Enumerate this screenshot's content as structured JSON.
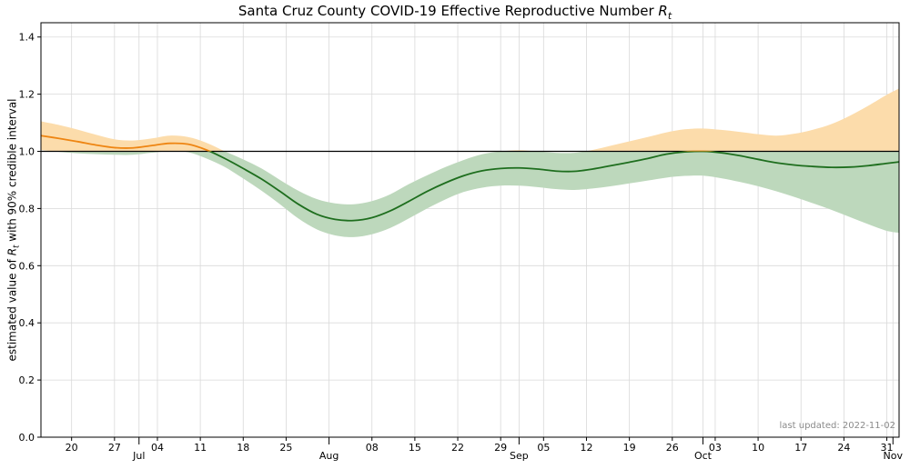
{
  "title": {
    "prefix": "Santa Cruz County COVID-19 Effective Reproductive Number ",
    "var": "R",
    "sub": "t"
  },
  "y_axis_label": {
    "prefix": "estimated value of ",
    "var": "R",
    "sub": "t",
    "suffix": " with 90% credible interval"
  },
  "footnote": "last updated: 2022-11-02",
  "chart_data": {
    "type": "line",
    "title": "Santa Cruz County COVID-19 Effective Reproductive Number Rt",
    "ylabel": "estimated value of Rt with 90% credible interval",
    "annotation": "last updated: 2022-11-02",
    "grid": true,
    "ylim": [
      0,
      1.45
    ],
    "y_ticks": [
      0,
      0.2,
      0.4,
      0.6,
      0.8,
      1,
      1.2,
      1.4
    ],
    "reference_line": 1.0,
    "xlim_days": [
      0,
      140
    ],
    "x_day_zero_date": "2022-06-15",
    "x_ticks_minor": [
      {
        "day": 5,
        "label": "20"
      },
      {
        "day": 12,
        "label": "27"
      },
      {
        "day": 19,
        "label": "04"
      },
      {
        "day": 26,
        "label": "11"
      },
      {
        "day": 33,
        "label": "18"
      },
      {
        "day": 40,
        "label": "25"
      },
      {
        "day": 54,
        "label": "08"
      },
      {
        "day": 61,
        "label": "15"
      },
      {
        "day": 68,
        "label": "22"
      },
      {
        "day": 75,
        "label": "29"
      },
      {
        "day": 82,
        "label": "05"
      },
      {
        "day": 89,
        "label": "12"
      },
      {
        "day": 96,
        "label": "19"
      },
      {
        "day": 103,
        "label": "26"
      },
      {
        "day": 110,
        "label": "03"
      },
      {
        "day": 117,
        "label": "10"
      },
      {
        "day": 124,
        "label": "17"
      },
      {
        "day": 131,
        "label": "24"
      },
      {
        "day": 138,
        "label": "31"
      }
    ],
    "x_ticks_major": [
      {
        "day": 16,
        "label": "Jul"
      },
      {
        "day": 47,
        "label": "Aug"
      },
      {
        "day": 78,
        "label": "Sep"
      },
      {
        "day": 108,
        "label": "Oct"
      },
      {
        "day": 139,
        "label": "Nov"
      }
    ],
    "colors": {
      "line_above_1": "#ee8512",
      "band_above_1": "#fcdcab",
      "line_below_1": "#1e6e1e",
      "band_below_1": "#bdd8bc",
      "reference_line": "#000000",
      "grid": "#d9d9d9",
      "annotation": "#8a8a8a"
    },
    "x_days": [
      0,
      3,
      6,
      9,
      12,
      15,
      18,
      21,
      24,
      27,
      30,
      33,
      36,
      39,
      42,
      45,
      48,
      51,
      54,
      57,
      60,
      63,
      66,
      69,
      72,
      75,
      78,
      81,
      84,
      87,
      90,
      93,
      96,
      99,
      102,
      105,
      108,
      111,
      114,
      117,
      120,
      123,
      126,
      129,
      132,
      135,
      138,
      140
    ],
    "series": [
      {
        "name": "Rt estimate (mean)",
        "values": [
          1.055,
          1.045,
          1.034,
          1.022,
          1.013,
          1.012,
          1.02,
          1.028,
          1.025,
          1.005,
          0.975,
          0.94,
          0.903,
          0.86,
          0.815,
          0.78,
          0.762,
          0.758,
          0.768,
          0.792,
          0.825,
          0.86,
          0.89,
          0.915,
          0.932,
          0.94,
          0.942,
          0.938,
          0.931,
          0.93,
          0.938,
          0.95,
          0.962,
          0.975,
          0.99,
          0.998,
          1.0,
          0.995,
          0.985,
          0.972,
          0.96,
          0.952,
          0.947,
          0.944,
          0.945,
          0.95,
          0.958,
          0.963
        ]
      },
      {
        "name": "90% credible interval lower",
        "values": [
          1.005,
          0.998,
          0.993,
          0.99,
          0.988,
          0.988,
          0.995,
          1.0,
          0.997,
          0.975,
          0.945,
          0.905,
          0.862,
          0.815,
          0.765,
          0.727,
          0.706,
          0.7,
          0.71,
          0.732,
          0.765,
          0.8,
          0.832,
          0.858,
          0.873,
          0.88,
          0.88,
          0.875,
          0.868,
          0.865,
          0.87,
          0.878,
          0.888,
          0.898,
          0.908,
          0.914,
          0.915,
          0.906,
          0.893,
          0.878,
          0.86,
          0.84,
          0.818,
          0.795,
          0.77,
          0.745,
          0.722,
          0.715
        ]
      },
      {
        "name": "90% credible interval upper",
        "values": [
          1.105,
          1.092,
          1.076,
          1.058,
          1.042,
          1.038,
          1.045,
          1.055,
          1.05,
          1.03,
          1.0,
          0.972,
          0.94,
          0.9,
          0.862,
          0.833,
          0.818,
          0.815,
          0.826,
          0.85,
          0.885,
          0.916,
          0.945,
          0.97,
          0.99,
          1.0,
          1.004,
          1.0,
          0.995,
          0.995,
          1.005,
          1.02,
          1.035,
          1.05,
          1.066,
          1.077,
          1.08,
          1.075,
          1.068,
          1.06,
          1.055,
          1.062,
          1.076,
          1.096,
          1.125,
          1.16,
          1.198,
          1.22
        ]
      }
    ]
  }
}
